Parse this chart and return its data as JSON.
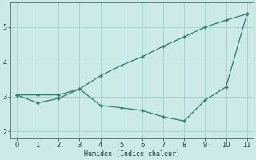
{
  "xlabel": "Humidex (Indice chaleur)",
  "background_color": "#cceae7",
  "grid_color": "#aad4d0",
  "line_color": "#2e7d72",
  "x_shared": [
    0,
    1,
    2,
    3,
    4,
    5,
    6,
    7,
    8,
    9,
    10,
    11
  ],
  "y_line_upper": [
    3.05,
    3.05,
    3.05,
    3.22,
    3.6,
    3.9,
    4.15,
    4.45,
    4.72,
    5.0,
    5.2,
    5.38
  ],
  "y_line_lower": [
    3.05,
    2.82,
    2.95,
    3.22,
    2.75,
    2.68,
    2.6,
    2.42,
    2.3,
    2.9,
    3.28,
    5.38
  ],
  "xlim": [
    -0.3,
    11.3
  ],
  "ylim": [
    1.8,
    5.7
  ],
  "yticks": [
    2,
    3,
    4,
    5
  ],
  "xticks": [
    0,
    1,
    2,
    3,
    4,
    5,
    6,
    7,
    8,
    9,
    10,
    11
  ]
}
